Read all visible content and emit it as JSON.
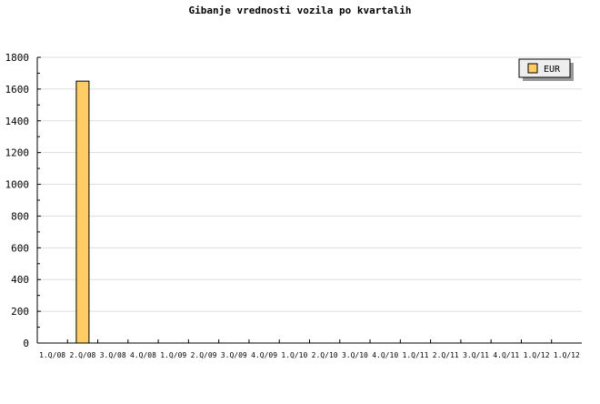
{
  "chart_data": {
    "type": "bar",
    "title": "Gibanje vrednosti vozila po kvartalih",
    "categories": [
      "1.Q/08",
      "2.Q/08",
      "3.Q/08",
      "4.Q/08",
      "1.Q/09",
      "2.Q/09",
      "3.Q/09",
      "4.Q/09",
      "1.Q/10",
      "2.Q/10",
      "3.Q/10",
      "4.Q/10",
      "1.Q/11",
      "2.Q/11",
      "3.Q/11",
      "4.Q/11",
      "1.Q/12",
      "1.Q/12"
    ],
    "series": [
      {
        "name": "EUR",
        "values": [
          0,
          1650,
          0,
          0,
          0,
          0,
          0,
          0,
          0,
          0,
          0,
          0,
          0,
          0,
          0,
          0,
          0,
          0
        ],
        "color": "#ffcc66"
      }
    ],
    "ylim": [
      0,
      1800
    ],
    "yticks": [
      0,
      200,
      400,
      600,
      800,
      1000,
      1200,
      1400,
      1600,
      1800
    ],
    "grid": true,
    "legend": "top-right"
  }
}
